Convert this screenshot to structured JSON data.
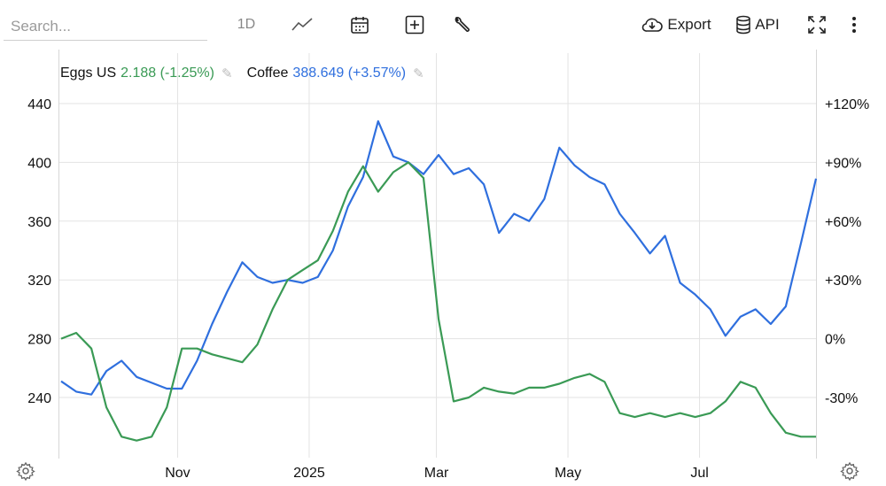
{
  "toolbar": {
    "search_placeholder": "Search...",
    "period_label": "1D",
    "line_icon": "line-chart-icon",
    "calendar_icon": "calendar-icon",
    "add_icon": "plus-square-icon",
    "tools_icon": "wrench-icon",
    "export_label": "Export",
    "export_icon": "cloud-download-icon",
    "api_label": "API",
    "api_icon": "database-icon",
    "fullscreen_icon": "expand-icon",
    "more_icon": "vertical-dots-icon"
  },
  "legend": [
    {
      "name": "Eggs US",
      "value": "2.188 (-1.25%)",
      "color": "#3a9a55",
      "edit_icon": "pencil-icon"
    },
    {
      "name": "Coffee",
      "value": "388.649 (+3.57%)",
      "color": "#2f6fde",
      "edit_icon": "pencil-icon"
    }
  ],
  "settings_icons": [
    "gear-icon",
    "gear-icon"
  ],
  "chart_data": {
    "type": "line",
    "x_tick_labels": [
      "Nov",
      "2025",
      "Mar",
      "May",
      "Jul"
    ],
    "y_left_ticks": [
      "440",
      "400",
      "360",
      "320",
      "280",
      "240"
    ],
    "y_right_ticks": [
      "+120%",
      "+90%",
      "+60%",
      "+30%",
      "0%",
      "-30%"
    ],
    "y_left_range": [
      215,
      450
    ],
    "y_right_range": [
      "-45%",
      "+120%"
    ],
    "grid": true,
    "legend_position": "top-left",
    "series": [
      {
        "name": "Coffee",
        "color": "#2f6fde",
        "axis": "left",
        "x": [
          "2024-09-08",
          "2024-09-15",
          "2024-09-22",
          "2024-09-29",
          "2024-10-06",
          "2024-10-13",
          "2024-10-20",
          "2024-10-27",
          "2024-11-03",
          "2024-11-10",
          "2024-11-17",
          "2024-11-24",
          "2024-12-01",
          "2024-12-08",
          "2024-12-15",
          "2024-12-22",
          "2024-12-29",
          "2025-01-05",
          "2025-01-12",
          "2025-01-19",
          "2025-01-26",
          "2025-02-02",
          "2025-02-09",
          "2025-02-16",
          "2025-02-23",
          "2025-03-02",
          "2025-03-09",
          "2025-03-16",
          "2025-03-23",
          "2025-03-30",
          "2025-04-06",
          "2025-04-13",
          "2025-04-20",
          "2025-04-27",
          "2025-05-04",
          "2025-05-11",
          "2025-05-18",
          "2025-05-25",
          "2025-06-01",
          "2025-06-08",
          "2025-06-15",
          "2025-06-22",
          "2025-06-29",
          "2025-07-06",
          "2025-07-13",
          "2025-07-20",
          "2025-07-27",
          "2025-08-03",
          "2025-08-10",
          "2025-08-17",
          "2025-08-24"
        ],
        "values": [
          251,
          244,
          242,
          258,
          265,
          254,
          250,
          246,
          246,
          265,
          290,
          312,
          332,
          322,
          318,
          320,
          318,
          322,
          340,
          370,
          390,
          428,
          404,
          400,
          392,
          405,
          392,
          396,
          385,
          352,
          365,
          360,
          375,
          410,
          398,
          390,
          385,
          365,
          352,
          338,
          350,
          318,
          310,
          300,
          282,
          295,
          300,
          290,
          302,
          345,
          389
        ]
      },
      {
        "name": "Eggs US",
        "color": "#3a9a55",
        "axis": "right",
        "x": [
          "2024-09-08",
          "2024-09-15",
          "2024-09-22",
          "2024-09-29",
          "2024-10-06",
          "2024-10-13",
          "2024-10-20",
          "2024-10-27",
          "2024-11-03",
          "2024-11-10",
          "2024-11-17",
          "2024-11-24",
          "2024-12-01",
          "2024-12-08",
          "2024-12-15",
          "2024-12-22",
          "2024-12-29",
          "2025-01-05",
          "2025-01-12",
          "2025-01-19",
          "2025-01-26",
          "2025-02-02",
          "2025-02-09",
          "2025-02-16",
          "2025-02-23",
          "2025-03-02",
          "2025-03-09",
          "2025-03-16",
          "2025-03-23",
          "2025-03-30",
          "2025-04-06",
          "2025-04-13",
          "2025-04-20",
          "2025-04-27",
          "2025-05-04",
          "2025-05-11",
          "2025-05-18",
          "2025-05-25",
          "2025-06-01",
          "2025-06-08",
          "2025-06-15",
          "2025-06-22",
          "2025-06-29",
          "2025-07-06",
          "2025-07-13",
          "2025-07-20",
          "2025-07-27",
          "2025-08-03",
          "2025-08-10",
          "2025-08-17",
          "2025-08-24"
        ],
        "values": [
          0,
          3,
          -5,
          -35,
          -50,
          -52,
          -50,
          -35,
          -5,
          -5,
          -8,
          -10,
          -12,
          -3,
          15,
          30,
          35,
          40,
          55,
          75,
          88,
          75,
          85,
          90,
          82,
          10,
          -32,
          -30,
          -25,
          -27,
          -28,
          -25,
          -25,
          -23,
          -20,
          -18,
          -22,
          -38,
          -40,
          -38,
          -40,
          -38,
          -40,
          -38,
          -32,
          -22,
          -25,
          -38,
          -48,
          -50,
          -50
        ]
      }
    ]
  }
}
